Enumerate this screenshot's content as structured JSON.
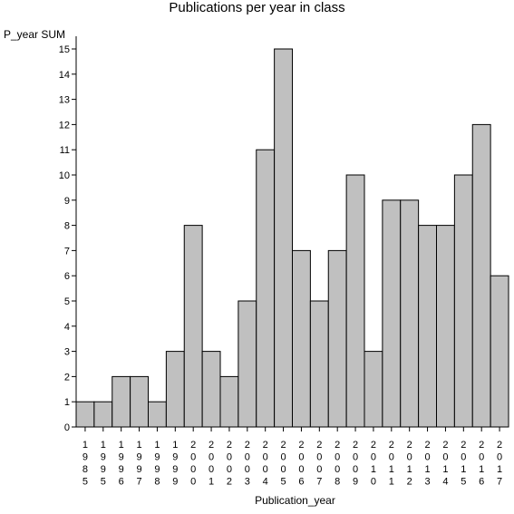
{
  "chart_data": {
    "type": "bar",
    "title": "Publications per year in class",
    "ylabel": "P_year SUM",
    "xlabel": "Publication_year",
    "categories": [
      "1985",
      "1995",
      "1996",
      "1997",
      "1998",
      "1999",
      "2000",
      "2001",
      "2002",
      "2003",
      "2004",
      "2005",
      "2006",
      "2007",
      "2008",
      "2009",
      "2010",
      "2011",
      "2012",
      "2013",
      "2014",
      "2015",
      "2016",
      "2017"
    ],
    "values": [
      1,
      1,
      2,
      2,
      1,
      3,
      8,
      3,
      2,
      5,
      11,
      15,
      7,
      5,
      7,
      10,
      3,
      9,
      9,
      8,
      8,
      10,
      12,
      6
    ],
    "ylim": [
      0,
      15
    ],
    "yticks": [
      0,
      1,
      2,
      3,
      4,
      5,
      6,
      7,
      8,
      9,
      10,
      11,
      12,
      13,
      14,
      15
    ],
    "bar_color": "#c0c0c0",
    "bar_edge_color": "#000000",
    "grid": false,
    "legend": "none"
  }
}
